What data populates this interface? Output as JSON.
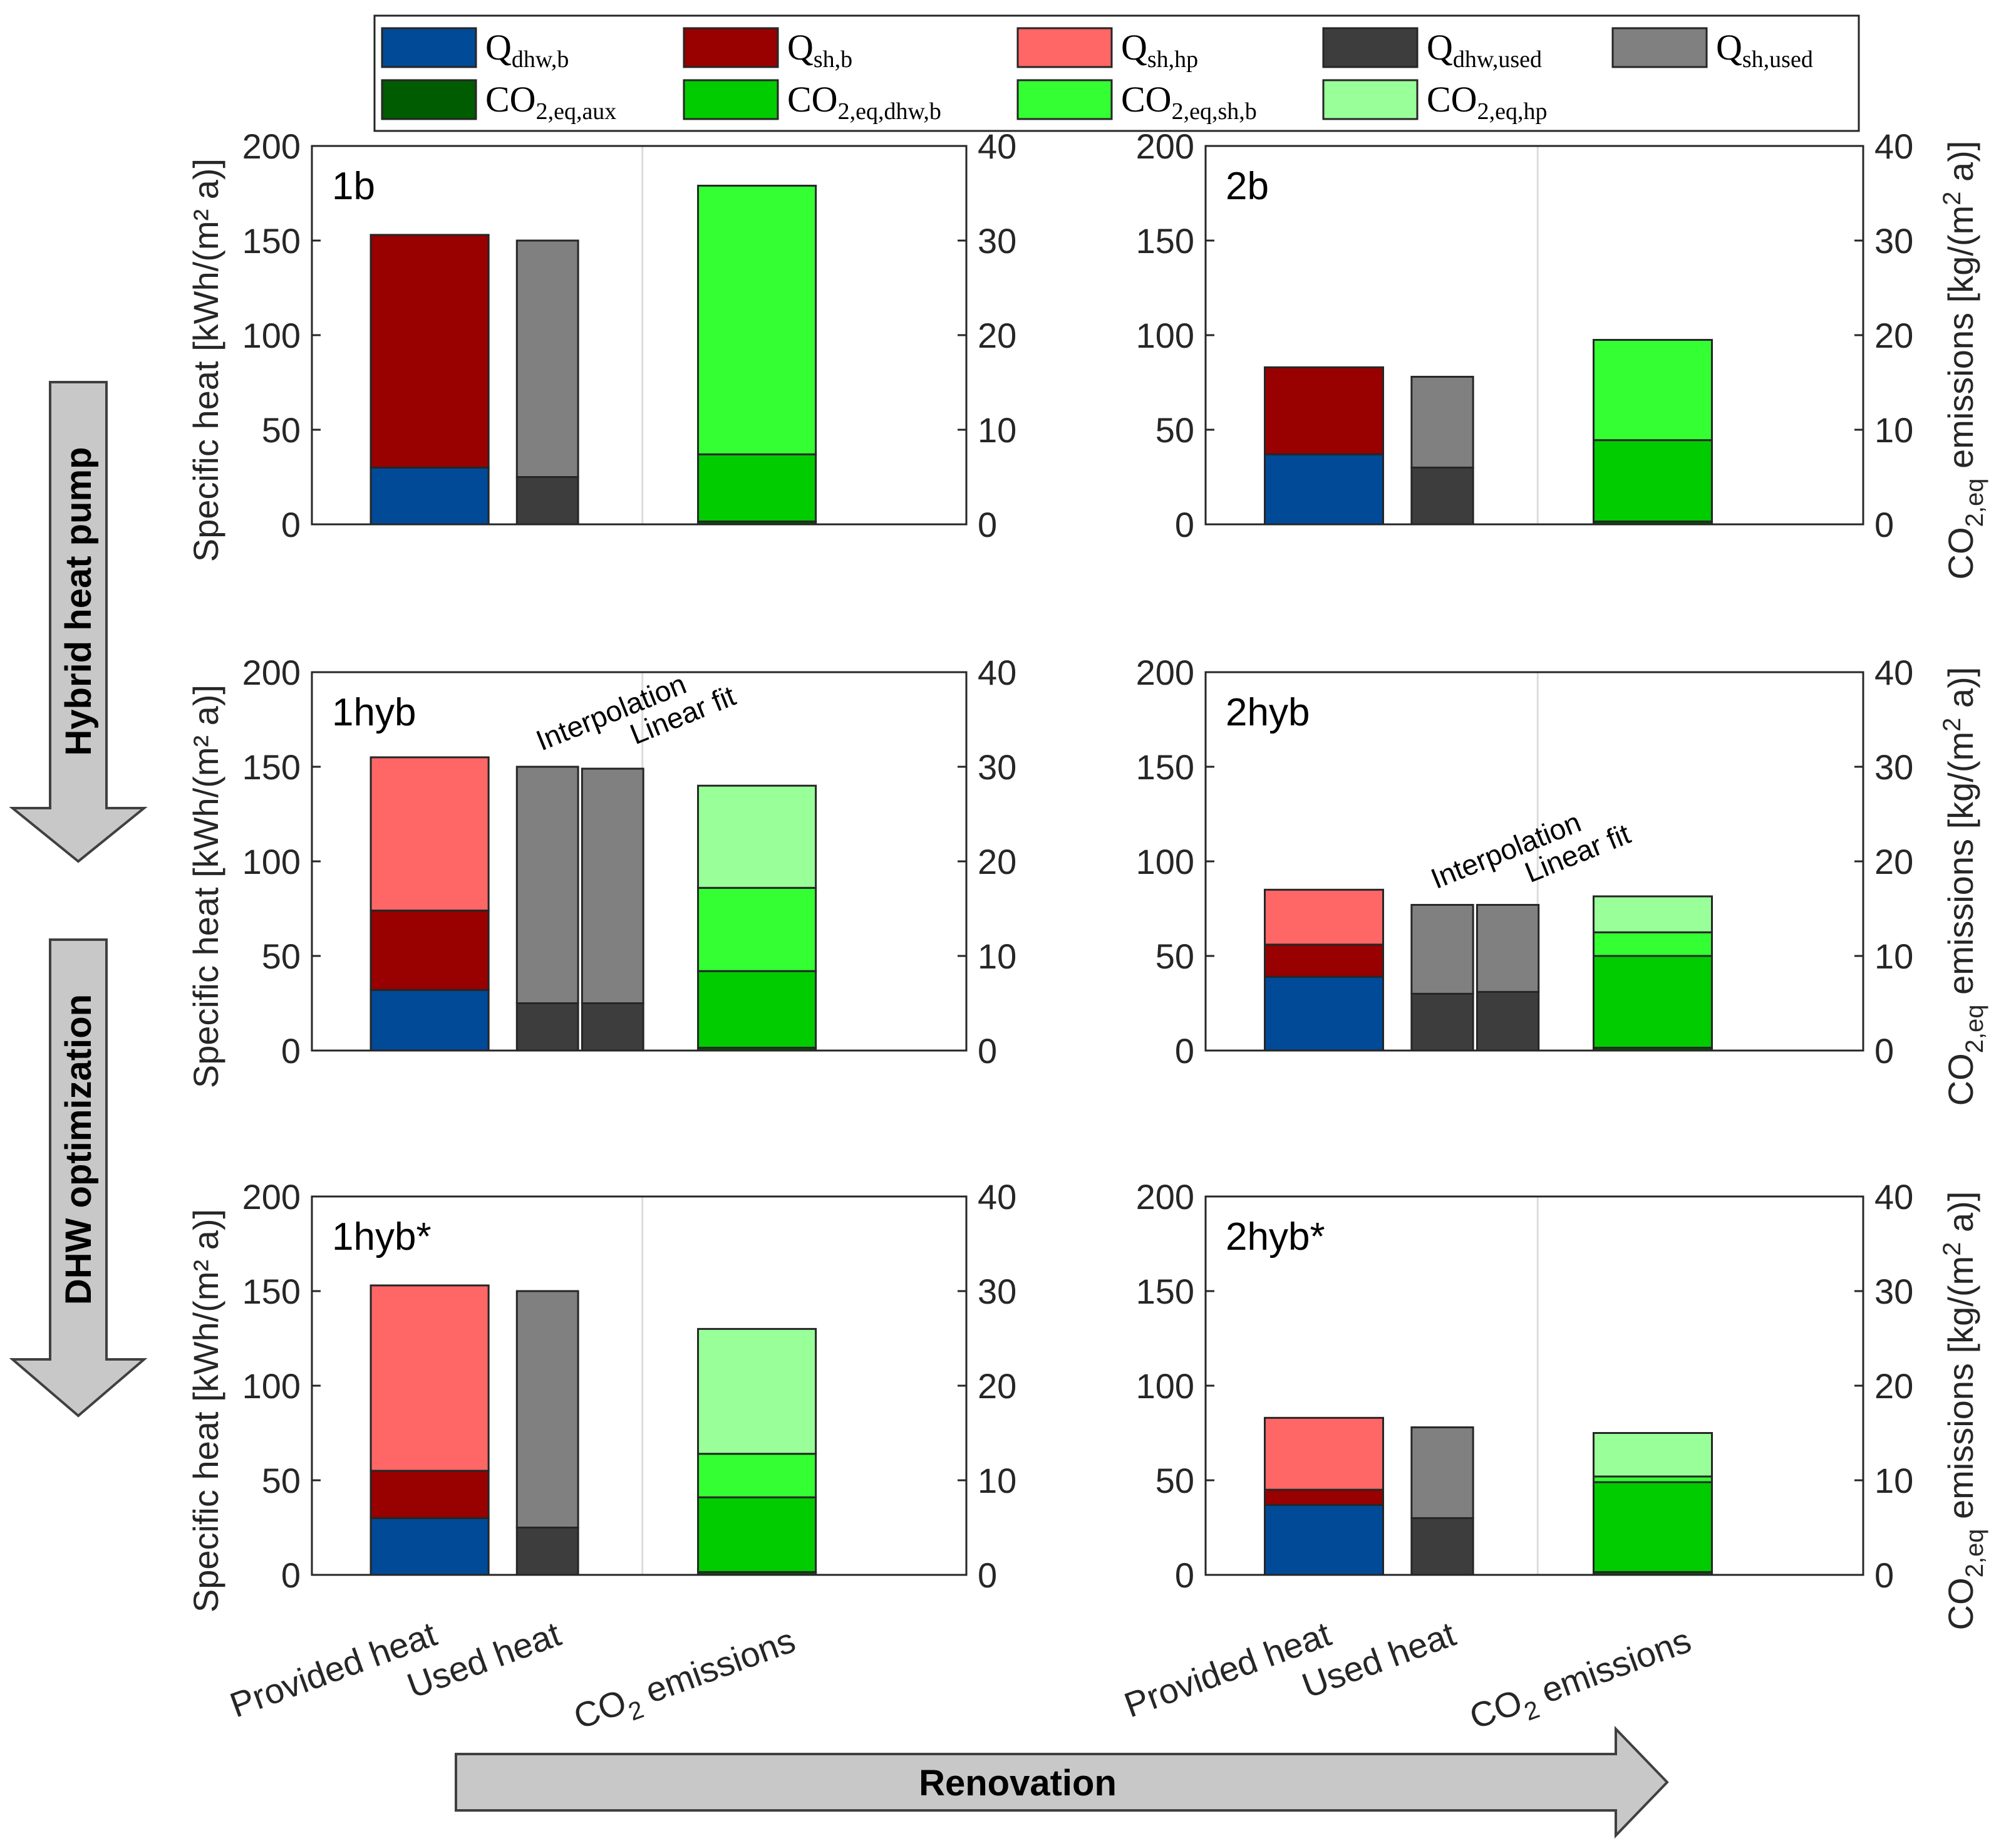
{
  "chart_data": {
    "type": "bar",
    "stacked": true,
    "left_axis": {
      "label": "Specific heat [kWh/(m² a)]",
      "lim": [
        0,
        200
      ],
      "ticks": [
        "0",
        "50",
        "100",
        "150",
        "200"
      ]
    },
    "right_axis": {
      "label_main": "CO",
      "label_sub": "2,eq",
      "label_rest": " emissions [kg/(m",
      "label_sup": "2",
      "label_end": " a)]",
      "lim": [
        0,
        40
      ],
      "ticks": [
        "0",
        "10",
        "20",
        "30",
        "40"
      ]
    },
    "categories": {
      "provided": "Provided heat",
      "used": "Used heat",
      "co2_main": "CO",
      "co2_sub": "2",
      "co2_rest": " emissions"
    },
    "legend": [
      {
        "key": "qdhwb",
        "main": "Q",
        "sub": "dhw,b",
        "color": "#004a98"
      },
      {
        "key": "qshb",
        "main": "Q",
        "sub": "sh,b",
        "color": "#990000"
      },
      {
        "key": "qshhp",
        "main": "Q",
        "sub": "sh,hp",
        "color": "#ff6666"
      },
      {
        "key": "qdhwused",
        "main": "Q",
        "sub": "dhw,used",
        "color": "#3d3d3d"
      },
      {
        "key": "qshused",
        "main": "Q",
        "sub": "sh,used",
        "color": "#808080"
      },
      {
        "key": "co2aux",
        "main": "CO",
        "sub": "2,eq,aux",
        "color": "#005c00"
      },
      {
        "key": "co2dhwb",
        "main": "CO",
        "sub": "2,eq,dhw,b",
        "color": "#00cc00"
      },
      {
        "key": "co2shb",
        "main": "CO",
        "sub": "2,eq,sh,b",
        "color": "#33ff33"
      },
      {
        "key": "co2hp",
        "main": "CO",
        "sub": "2,eq,hp",
        "color": "#99ff99"
      }
    ],
    "annotations": {
      "interp": "Interpolation",
      "linfit": "Linear fit"
    },
    "panels": [
      {
        "label": "1b",
        "provided": [
          {
            "key": "qdhwb",
            "value": 30
          },
          {
            "key": "qshb",
            "value": 123
          }
        ],
        "used": [
          [
            {
              "key": "qdhwused",
              "value": 25
            },
            {
              "key": "qshused",
              "value": 125
            }
          ]
        ],
        "co2": [
          {
            "key": "co2aux",
            "value": 0.3
          },
          {
            "key": "co2dhwb",
            "value": 7.1
          },
          {
            "key": "co2shb",
            "value": 28.4
          }
        ]
      },
      {
        "label": "2b",
        "provided": [
          {
            "key": "qdhwb",
            "value": 37
          },
          {
            "key": "qshb",
            "value": 46
          }
        ],
        "used": [
          [
            {
              "key": "qdhwused",
              "value": 30
            },
            {
              "key": "qshused",
              "value": 48
            }
          ]
        ],
        "co2": [
          {
            "key": "co2aux",
            "value": 0.3
          },
          {
            "key": "co2dhwb",
            "value": 8.6
          },
          {
            "key": "co2shb",
            "value": 10.6
          }
        ]
      },
      {
        "label": "1hyb",
        "provided": [
          {
            "key": "qdhwb",
            "value": 32
          },
          {
            "key": "qshb",
            "value": 42
          },
          {
            "key": "qshhp",
            "value": 81
          }
        ],
        "used": [
          [
            {
              "key": "qdhwused",
              "value": 25
            },
            {
              "key": "qshused",
              "value": 125
            }
          ],
          [
            {
              "key": "qdhwused",
              "value": 25
            },
            {
              "key": "qshused",
              "value": 124
            }
          ]
        ],
        "co2": [
          {
            "key": "co2aux",
            "value": 0.3
          },
          {
            "key": "co2dhwb",
            "value": 8.1
          },
          {
            "key": "co2shb",
            "value": 8.8
          },
          {
            "key": "co2hp",
            "value": 10.8
          }
        ],
        "annotated": true
      },
      {
        "label": "2hyb",
        "provided": [
          {
            "key": "qdhwb",
            "value": 39
          },
          {
            "key": "qshb",
            "value": 17
          },
          {
            "key": "qshhp",
            "value": 29
          }
        ],
        "used": [
          [
            {
              "key": "qdhwused",
              "value": 30
            },
            {
              "key": "qshused",
              "value": 47
            }
          ],
          [
            {
              "key": "qdhwused",
              "value": 31
            },
            {
              "key": "qshused",
              "value": 46
            }
          ]
        ],
        "co2": [
          {
            "key": "co2aux",
            "value": 0.3
          },
          {
            "key": "co2dhwb",
            "value": 9.7
          },
          {
            "key": "co2shb",
            "value": 2.5
          },
          {
            "key": "co2hp",
            "value": 3.8
          }
        ],
        "annotated": true
      },
      {
        "label": "1hyb*",
        "provided": [
          {
            "key": "qdhwb",
            "value": 30
          },
          {
            "key": "qshb",
            "value": 25
          },
          {
            "key": "qshhp",
            "value": 98
          }
        ],
        "used": [
          [
            {
              "key": "qdhwused",
              "value": 25
            },
            {
              "key": "qshused",
              "value": 125
            }
          ]
        ],
        "co2": [
          {
            "key": "co2aux",
            "value": 0.3
          },
          {
            "key": "co2dhwb",
            "value": 7.9
          },
          {
            "key": "co2shb",
            "value": 4.6
          },
          {
            "key": "co2hp",
            "value": 13.2
          }
        ]
      },
      {
        "label": "2hyb*",
        "provided": [
          {
            "key": "qdhwb",
            "value": 37
          },
          {
            "key": "qshb",
            "value": 8
          },
          {
            "key": "qshhp",
            "value": 38
          }
        ],
        "used": [
          [
            {
              "key": "qdhwused",
              "value": 30
            },
            {
              "key": "qshused",
              "value": 48
            }
          ]
        ],
        "co2": [
          {
            "key": "co2aux",
            "value": 0.3
          },
          {
            "key": "co2dhwb",
            "value": 9.5
          },
          {
            "key": "co2shb",
            "value": 0.6
          },
          {
            "key": "co2hp",
            "value": 4.6
          }
        ]
      }
    ]
  },
  "arrows": {
    "vertical_top": "Hybrid heat pump",
    "vertical_bottom": "DHW optimization",
    "horizontal": "Renovation"
  }
}
